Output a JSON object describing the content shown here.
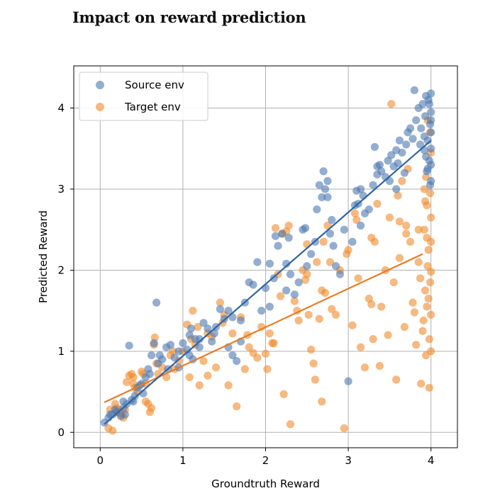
{
  "page_title": "Impact on reward prediction",
  "colors": {
    "source": "#4c78b0",
    "target": "#f08a2c",
    "source_line": "#2f64a4",
    "target_line": "#ea7a22",
    "grid": "#b0b0b0",
    "axes": "#000000"
  },
  "chart_data": {
    "type": "scatter",
    "title": "Impact on reward prediction",
    "xlabel": "Groundtruth Reward",
    "ylabel": "Predicted Reward",
    "xlim": [
      -0.32,
      4.32
    ],
    "ylim": [
      -0.19,
      4.52
    ],
    "xticks": [
      0,
      1,
      2,
      3,
      4
    ],
    "yticks": [
      0,
      1,
      2,
      3,
      4
    ],
    "grid": true,
    "legend_position": "top-left",
    "series": [
      {
        "name": "Source env",
        "label": "Source env",
        "color": "#4c78b0",
        "fit": {
          "x": [
            0.05,
            4.0
          ],
          "y": [
            0.1,
            3.6
          ]
        },
        "points": [
          [
            0.05,
            0.12
          ],
          [
            0.1,
            0.18
          ],
          [
            0.12,
            0.22
          ],
          [
            0.18,
            0.28
          ],
          [
            0.2,
            0.25
          ],
          [
            0.25,
            0.2
          ],
          [
            0.28,
            0.3
          ],
          [
            0.3,
            0.22
          ],
          [
            0.32,
            0.35
          ],
          [
            0.35,
            1.07
          ],
          [
            0.38,
            0.4
          ],
          [
            0.4,
            0.38
          ],
          [
            0.42,
            0.45
          ],
          [
            0.45,
            0.55
          ],
          [
            0.5,
            0.6
          ],
          [
            0.52,
            0.48
          ],
          [
            0.55,
            0.68
          ],
          [
            0.58,
            0.78
          ],
          [
            0.6,
            0.72
          ],
          [
            0.62,
            0.95
          ],
          [
            0.65,
            1.1
          ],
          [
            0.68,
            1.6
          ],
          [
            0.7,
            0.85
          ],
          [
            0.75,
            0.9
          ],
          [
            0.8,
            1.05
          ],
          [
            0.85,
            1.08
          ],
          [
            0.9,
            0.92
          ],
          [
            0.95,
            0.8
          ],
          [
            1.0,
            1.1
          ],
          [
            1.05,
            1.02
          ],
          [
            1.08,
            1.2
          ],
          [
            1.1,
            1.28
          ],
          [
            1.12,
            0.9
          ],
          [
            1.15,
            1.15
          ],
          [
            1.2,
            1.05
          ],
          [
            1.25,
            1.35
          ],
          [
            1.3,
            1.28
          ],
          [
            1.35,
            1.12
          ],
          [
            1.4,
            1.3
          ],
          [
            1.45,
            1.52
          ],
          [
            1.5,
            1.4
          ],
          [
            1.55,
            1.05
          ],
          [
            1.6,
            0.95
          ],
          [
            1.65,
            0.88
          ],
          [
            1.7,
            1.12
          ],
          [
            1.75,
            1.6
          ],
          [
            1.8,
            1.85
          ],
          [
            1.85,
            1.82
          ],
          [
            1.9,
            2.1
          ],
          [
            1.95,
            1.5
          ],
          [
            2.0,
            1.78
          ],
          [
            2.05,
            1.55
          ],
          [
            2.1,
            1.9
          ],
          [
            2.12,
            2.42
          ],
          [
            2.15,
            2.3
          ],
          [
            2.2,
            2.45
          ],
          [
            2.25,
            2.08
          ],
          [
            2.28,
            2.4
          ],
          [
            2.3,
            1.95
          ],
          [
            2.35,
            1.7
          ],
          [
            2.4,
            1.85
          ],
          [
            2.45,
            2.5
          ],
          [
            2.5,
            2.05
          ],
          [
            2.55,
            2.2
          ],
          [
            2.6,
            2.35
          ],
          [
            2.62,
            2.75
          ],
          [
            2.65,
            3.05
          ],
          [
            2.68,
            2.9
          ],
          [
            2.7,
            3.22
          ],
          [
            2.72,
            3.0
          ],
          [
            2.75,
            3.1
          ],
          [
            2.78,
            2.45
          ],
          [
            2.8,
            2.62
          ],
          [
            2.82,
            2.3
          ],
          [
            2.85,
            2.05
          ],
          [
            2.9,
            1.95
          ],
          [
            2.95,
            2.5
          ],
          [
            3.0,
            0.63
          ],
          [
            3.05,
            2.35
          ],
          [
            3.08,
            2.8
          ],
          [
            3.1,
            2.98
          ],
          [
            3.12,
            2.82
          ],
          [
            3.15,
            2.55
          ],
          [
            3.18,
            2.92
          ],
          [
            3.2,
            2.7
          ],
          [
            3.25,
            2.75
          ],
          [
            3.3,
            3.05
          ],
          [
            3.32,
            3.52
          ],
          [
            3.35,
            3.28
          ],
          [
            3.38,
            3.3
          ],
          [
            3.4,
            3.22
          ],
          [
            3.45,
            3.15
          ],
          [
            3.48,
            3.35
          ],
          [
            3.5,
            3.1
          ],
          [
            3.55,
            3.28
          ],
          [
            3.58,
            3.0
          ],
          [
            3.6,
            3.32
          ],
          [
            3.62,
            3.6
          ],
          [
            3.65,
            3.45
          ],
          [
            3.68,
            3.2
          ],
          [
            3.7,
            3.55
          ],
          [
            3.72,
            3.7
          ],
          [
            3.75,
            3.75
          ],
          [
            3.78,
            3.62
          ],
          [
            3.8,
            4.22
          ],
          [
            3.82,
            3.85
          ],
          [
            3.85,
            4.0
          ],
          [
            3.87,
            3.55
          ],
          [
            3.88,
            3.75
          ],
          [
            3.9,
            4.05
          ],
          [
            3.92,
            3.48
          ],
          [
            3.93,
            3.9
          ],
          [
            3.94,
            4.15
          ],
          [
            3.95,
            3.22
          ],
          [
            3.96,
            3.6
          ],
          [
            3.97,
            4.1
          ],
          [
            3.98,
            3.35
          ],
          [
            3.99,
            3.8
          ],
          [
            4.0,
            4.18
          ],
          [
            4.0,
            3.95
          ],
          [
            4.0,
            3.7
          ],
          [
            4.0,
            3.5
          ],
          [
            4.0,
            3.3
          ],
          [
            4.0,
            3.1
          ],
          [
            4.0,
            3.85
          ],
          [
            3.98,
            4.05
          ],
          [
            3.96,
            3.25
          ],
          [
            3.94,
            3.4
          ],
          [
            3.92,
            3.65
          ],
          [
            3.99,
            3.05
          ],
          [
            2.25,
            1.75
          ],
          [
            1.2,
            1.15
          ],
          [
            0.95,
            1.0
          ],
          [
            0.72,
            0.95
          ],
          [
            0.48,
            0.58
          ],
          [
            0.28,
            0.38
          ],
          [
            0.15,
            0.22
          ],
          [
            1.6,
            1.42
          ],
          [
            2.48,
            2.52
          ],
          [
            3.15,
            3.0
          ],
          [
            1.38,
            1.22
          ],
          [
            1.55,
            1.5
          ],
          [
            1.7,
            1.38
          ],
          [
            2.75,
            2.9
          ],
          [
            3.52,
            3.42
          ],
          [
            3.58,
            3.48
          ],
          [
            3.35,
            3.18
          ],
          [
            0.82,
            0.78
          ],
          [
            1.08,
            0.95
          ],
          [
            2.05,
            2.08
          ]
        ]
      },
      {
        "name": "Target env",
        "label": "Target env",
        "color": "#f08a2c",
        "fit": {
          "x": [
            0.05,
            3.9
          ],
          "y": [
            0.37,
            2.2
          ]
        },
        "points": [
          [
            0.1,
            0.05
          ],
          [
            0.12,
            0.28
          ],
          [
            0.15,
            0.02
          ],
          [
            0.18,
            0.35
          ],
          [
            0.2,
            0.3
          ],
          [
            0.22,
            0.25
          ],
          [
            0.25,
            0.22
          ],
          [
            0.28,
            0.18
          ],
          [
            0.3,
            0.28
          ],
          [
            0.32,
            0.62
          ],
          [
            0.35,
            0.7
          ],
          [
            0.38,
            0.72
          ],
          [
            0.4,
            0.68
          ],
          [
            0.42,
            0.55
          ],
          [
            0.45,
            0.5
          ],
          [
            0.5,
            0.75
          ],
          [
            0.52,
            0.72
          ],
          [
            0.55,
            0.38
          ],
          [
            0.58,
            0.35
          ],
          [
            0.6,
            0.25
          ],
          [
            0.62,
            0.3
          ],
          [
            0.65,
            1.08
          ],
          [
            0.66,
            1.17
          ],
          [
            0.7,
            0.72
          ],
          [
            0.75,
            0.8
          ],
          [
            0.8,
            0.68
          ],
          [
            0.85,
            0.95
          ],
          [
            0.9,
            0.78
          ],
          [
            0.95,
            0.88
          ],
          [
            1.0,
            1.0
          ],
          [
            1.05,
            1.33
          ],
          [
            1.08,
            0.68
          ],
          [
            1.1,
            1.15
          ],
          [
            1.12,
            1.5
          ],
          [
            1.15,
            1.08
          ],
          [
            1.2,
            0.58
          ],
          [
            1.25,
            0.88
          ],
          [
            1.3,
            1.22
          ],
          [
            1.35,
            1.18
          ],
          [
            1.4,
            0.8
          ],
          [
            1.45,
            1.6
          ],
          [
            1.5,
            1.45
          ],
          [
            1.55,
            0.58
          ],
          [
            1.6,
            1.22
          ],
          [
            1.65,
            0.32
          ],
          [
            1.7,
            1.42
          ],
          [
            1.75,
            0.78
          ],
          [
            1.8,
            1.05
          ],
          [
            1.85,
            0.98
          ],
          [
            1.9,
            0.92
          ],
          [
            1.95,
            1.3
          ],
          [
            2.0,
            0.97
          ],
          [
            2.02,
            0.78
          ],
          [
            2.05,
            1.22
          ],
          [
            2.1,
            1.1
          ],
          [
            2.12,
            2.52
          ],
          [
            2.15,
            1.95
          ],
          [
            2.18,
            1.68
          ],
          [
            2.2,
            2.45
          ],
          [
            2.22,
            0.47
          ],
          [
            2.25,
            2.48
          ],
          [
            2.28,
            2.55
          ],
          [
            2.3,
            0.1
          ],
          [
            2.35,
            1.62
          ],
          [
            2.4,
            1.38
          ],
          [
            2.45,
            2.0
          ],
          [
            2.48,
            1.88
          ],
          [
            2.5,
            2.32
          ],
          [
            2.52,
            1.45
          ],
          [
            2.55,
            1.02
          ],
          [
            2.58,
            0.85
          ],
          [
            2.6,
            0.65
          ],
          [
            2.62,
            2.1
          ],
          [
            2.65,
            1.4
          ],
          [
            2.68,
            0.38
          ],
          [
            2.7,
            2.35
          ],
          [
            2.72,
            1.72
          ],
          [
            2.75,
            2.55
          ],
          [
            2.78,
            2.1
          ],
          [
            2.8,
            1.52
          ],
          [
            2.85,
            1.45
          ],
          [
            2.9,
            2.0
          ],
          [
            2.95,
            0.05
          ],
          [
            3.0,
            2.25
          ],
          [
            3.05,
            1.32
          ],
          [
            3.08,
            2.7
          ],
          [
            3.1,
            2.62
          ],
          [
            3.12,
            1.9
          ],
          [
            3.15,
            1.05
          ],
          [
            3.2,
            0.8
          ],
          [
            3.25,
            1.65
          ],
          [
            3.28,
            1.58
          ],
          [
            3.3,
            1.15
          ],
          [
            3.32,
            2.35
          ],
          [
            3.35,
            2.82
          ],
          [
            3.38,
            0.82
          ],
          [
            3.4,
            1.55
          ],
          [
            3.45,
            2.0
          ],
          [
            3.48,
            1.2
          ],
          [
            3.5,
            2.65
          ],
          [
            3.52,
            4.05
          ],
          [
            3.55,
            1.85
          ],
          [
            3.58,
            0.65
          ],
          [
            3.6,
            2.92
          ],
          [
            3.62,
            2.6
          ],
          [
            3.65,
            3.1
          ],
          [
            3.68,
            1.3
          ],
          [
            3.7,
            2.55
          ],
          [
            3.72,
            3.25
          ],
          [
            3.75,
            2.35
          ],
          [
            3.78,
            1.6
          ],
          [
            3.8,
            1.48
          ],
          [
            3.82,
            1.08
          ],
          [
            3.85,
            2.1
          ],
          [
            3.87,
            1.9
          ],
          [
            3.88,
            0.6
          ],
          [
            3.9,
            1.25
          ],
          [
            3.92,
            2.5
          ],
          [
            3.93,
            1.75
          ],
          [
            3.94,
            3.15
          ],
          [
            3.95,
            2.8
          ],
          [
            3.96,
            2.05
          ],
          [
            3.97,
            1.65
          ],
          [
            3.98,
            0.55
          ],
          [
            3.99,
            2.95
          ],
          [
            4.0,
            2.35
          ],
          [
            4.0,
            1.98
          ],
          [
            4.0,
            1.0
          ],
          [
            4.0,
            3.45
          ],
          [
            4.0,
            2.65
          ],
          [
            4.0,
            1.45
          ],
          [
            3.99,
            3.7
          ],
          [
            3.98,
            1.15
          ],
          [
            3.97,
            2.25
          ],
          [
            3.96,
            3.85
          ],
          [
            3.95,
            1.55
          ],
          [
            3.94,
            0.95
          ],
          [
            3.93,
            2.85
          ],
          [
            3.92,
            3.0
          ],
          [
            3.91,
            1.38
          ],
          [
            0.22,
            0.28
          ],
          [
            0.4,
            0.6
          ],
          [
            0.68,
            0.85
          ],
          [
            0.88,
            1.0
          ],
          [
            1.18,
            1.3
          ],
          [
            1.48,
            1.35
          ],
          [
            1.78,
            1.2
          ],
          [
            2.08,
            1.1
          ],
          [
            2.38,
            1.5
          ],
          [
            2.68,
            1.75
          ],
          [
            2.98,
            2.2
          ],
          [
            3.28,
            2.4
          ],
          [
            3.62,
            2.15
          ],
          [
            3.95,
            2.4
          ],
          [
            3.99,
            1.85
          ],
          [
            3.85,
            2.5
          ],
          [
            3.7,
            2.45
          ],
          [
            0.55,
            0.6
          ],
          [
            1.3,
            0.7
          ],
          [
            2.5,
            1.95
          ]
        ]
      }
    ]
  }
}
